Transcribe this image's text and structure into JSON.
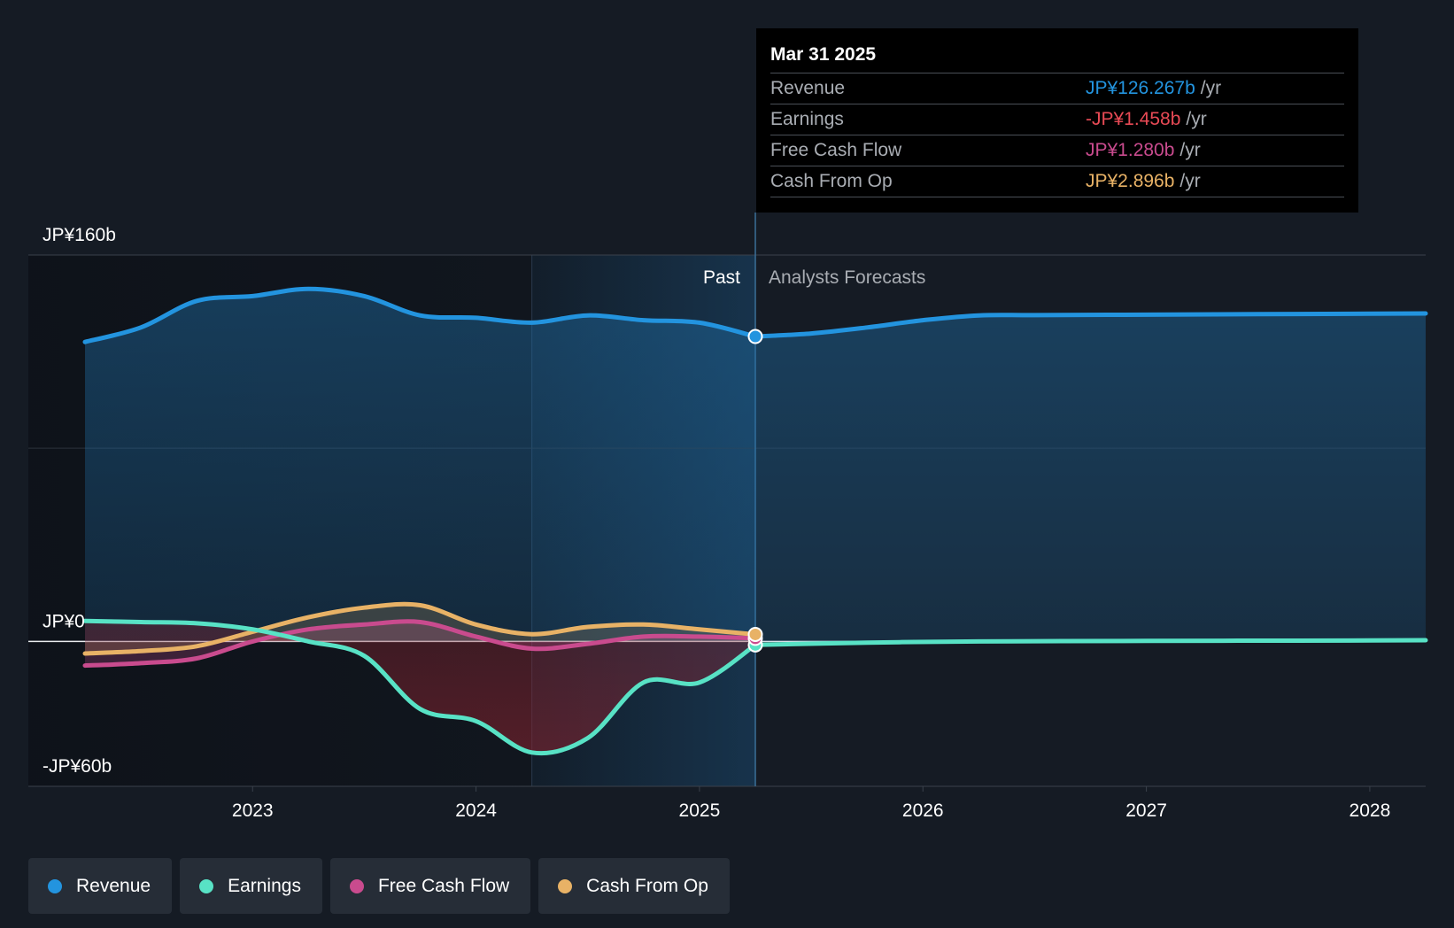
{
  "chart_data": {
    "type": "area",
    "y_axis": {
      "min": -60,
      "max": 160,
      "labels": [
        {
          "value": 160,
          "text": "JP¥160b"
        },
        {
          "value": 0,
          "text": "JP¥0"
        },
        {
          "value": -60,
          "text": "-JP¥60b"
        }
      ]
    },
    "x_axis": {
      "min": 2022.25,
      "max": 2028.25,
      "ticks": [
        {
          "value": 2023,
          "text": "2023"
        },
        {
          "value": 2024,
          "text": "2024"
        },
        {
          "value": 2025,
          "text": "2025"
        },
        {
          "value": 2026,
          "text": "2026"
        },
        {
          "value": 2027,
          "text": "2027"
        },
        {
          "value": 2028,
          "text": "2028"
        }
      ]
    },
    "past_label": "Past",
    "forecast_label": "Analysts Forecasts",
    "highlight_start": 2024.25,
    "divider": 2025.25,
    "series": [
      {
        "name": "Revenue",
        "color": "#2394df",
        "x": [
          2022.25,
          2022.5,
          2022.75,
          2023.0,
          2023.25,
          2023.5,
          2023.75,
          2024.0,
          2024.25,
          2024.5,
          2024.75,
          2025.0,
          2025.25
        ],
        "values": [
          124,
          130,
          141,
          143,
          146,
          143,
          135,
          134,
          132,
          135,
          133,
          132,
          126.267
        ],
        "forecast_x": [
          2025.25,
          2025.5,
          2025.75,
          2026.0,
          2026.25,
          2026.5,
          2027.0,
          2027.5,
          2028.0,
          2028.25
        ],
        "forecast_values": [
          126.267,
          127.5,
          130,
          133,
          135,
          135.1,
          135.3,
          135.5,
          135.7,
          135.8
        ]
      },
      {
        "name": "Earnings",
        "color": "#58e2c5",
        "x": [
          2022.25,
          2022.5,
          2022.75,
          2023.0,
          2023.25,
          2023.5,
          2023.75,
          2024.0,
          2024.25,
          2024.5,
          2024.75,
          2025.0,
          2025.25
        ],
        "values": [
          8.5,
          8,
          7.5,
          5,
          0,
          -6,
          -28,
          -33,
          -46,
          -40,
          -17,
          -17,
          -1.458
        ],
        "forecast_x": [
          2025.25,
          2025.75,
          2026.25,
          2027.0,
          2027.5,
          2028.0,
          2028.25
        ],
        "forecast_values": [
          -1.458,
          -0.5,
          0,
          0.2,
          0.3,
          0.4,
          0.5
        ]
      },
      {
        "name": "Free Cash Flow",
        "color": "#c94b8e",
        "x": [
          2022.25,
          2022.5,
          2022.75,
          2023.0,
          2023.25,
          2023.5,
          2023.75,
          2024.0,
          2024.25,
          2024.5,
          2024.75,
          2025.0,
          2025.25
        ],
        "values": [
          -10,
          -9,
          -7,
          0,
          5,
          7,
          8,
          2,
          -3,
          -1,
          2,
          2,
          1.28
        ]
      },
      {
        "name": "Cash From Op",
        "color": "#e8b266",
        "x": [
          2022.25,
          2022.5,
          2022.75,
          2023.0,
          2023.25,
          2023.5,
          2023.75,
          2024.0,
          2024.25,
          2024.5,
          2024.75,
          2025.0,
          2025.25
        ],
        "values": [
          -5,
          -4,
          -2,
          4,
          10,
          14,
          15,
          7,
          3,
          6,
          7,
          5,
          2.896
        ]
      }
    ]
  },
  "tooltip": {
    "date": "Mar 31 2025",
    "rows": [
      {
        "name": "Revenue",
        "value": "JP¥126.267b",
        "unit": "/yr",
        "color": "#2394df"
      },
      {
        "name": "Earnings",
        "value": "-JP¥1.458b",
        "unit": "/yr",
        "color": "#e84a55"
      },
      {
        "name": "Free Cash Flow",
        "value": "JP¥1.280b",
        "unit": "/yr",
        "color": "#c94b8e"
      },
      {
        "name": "Cash From Op",
        "value": "JP¥2.896b",
        "unit": "/yr",
        "color": "#e8b266"
      }
    ]
  },
  "legend": [
    {
      "name": "Revenue",
      "color": "#2394df"
    },
    {
      "name": "Earnings",
      "color": "#58e2c5"
    },
    {
      "name": "Free Cash Flow",
      "color": "#c94b8e"
    },
    {
      "name": "Cash From Op",
      "color": "#e8b266"
    }
  ]
}
